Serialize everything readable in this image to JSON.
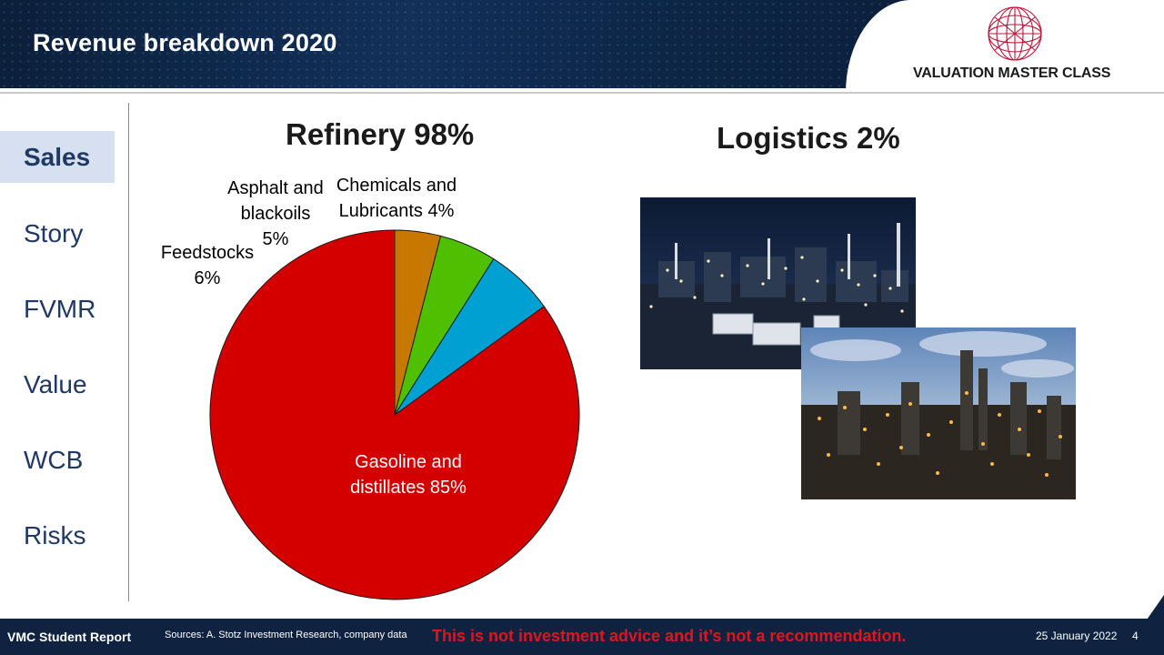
{
  "header": {
    "title": "Revenue breakdown 2020",
    "logo_text": "VALUATION MASTER CLASS",
    "logo_icon": "globe-icon"
  },
  "nav": {
    "items": [
      {
        "label": "Sales",
        "active": true
      },
      {
        "label": "Story",
        "active": false
      },
      {
        "label": "FVMR",
        "active": false
      },
      {
        "label": "Value",
        "active": false
      },
      {
        "label": "WCB",
        "active": false
      },
      {
        "label": "Risks",
        "active": false
      }
    ]
  },
  "refinery": {
    "title": "Refinery 98%"
  },
  "logistics": {
    "title": "Logistics 2%"
  },
  "chart_data": {
    "type": "pie",
    "title": "Refinery 98%",
    "slices": [
      {
        "label": "Gasoline and distillates 85%",
        "lines": [
          "Gasoline and",
          "distillates 85%"
        ],
        "value": 85,
        "color": "#d40000"
      },
      {
        "label": "Feedstocks 6%",
        "lines": [
          "Feedstocks",
          "6%"
        ],
        "value": 6,
        "color": "#00a0d2"
      },
      {
        "label": "Asphalt and blackoils 5%",
        "lines": [
          "Asphalt and",
          "blackoils",
          "5%"
        ],
        "value": 5,
        "color": "#4fc000"
      },
      {
        "label": "Chemicals and Lubricants 4%",
        "lines": [
          "Chemicals and",
          "Lubricants 4%"
        ],
        "value": 4,
        "color": "#c77800"
      }
    ],
    "start": "12 o'clock",
    "direction": "counter-clockwise"
  },
  "footer": {
    "report": "VMC Student Report",
    "sources": "Sources: A. Stotz Investment Research, company data",
    "disclaimer": "This is not investment advice and it’s not a recommendation.",
    "date": "25 January 2022",
    "page": "4"
  }
}
